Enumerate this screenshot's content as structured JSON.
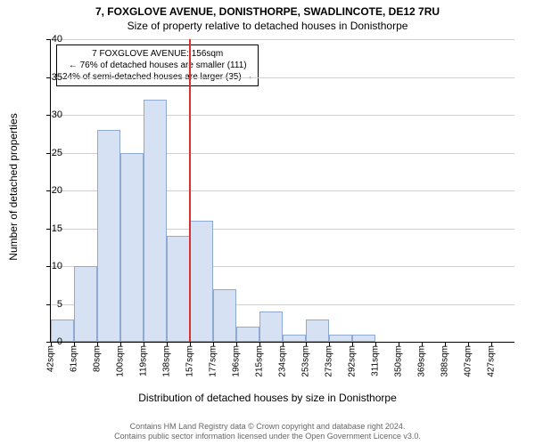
{
  "title": "7, FOXGLOVE AVENUE, DONISTHORPE, SWADLINCOTE, DE12 7RU",
  "subtitle": "Size of property relative to detached houses in Donisthorpe",
  "yaxis_label": "Number of detached properties",
  "xaxis_label": "Distribution of detached houses by size in Donisthorpe",
  "chart": {
    "type": "histogram",
    "ylim": [
      0,
      40
    ],
    "ytick_step": 5,
    "yticks": [
      0,
      5,
      10,
      15,
      20,
      25,
      30,
      35,
      40
    ],
    "xticks": [
      "42sqm",
      "61sqm",
      "80sqm",
      "100sqm",
      "119sqm",
      "138sqm",
      "157sqm",
      "177sqm",
      "196sqm",
      "215sqm",
      "234sqm",
      "253sqm",
      "273sqm",
      "292sqm",
      "311sqm",
      "350sqm",
      "369sqm",
      "388sqm",
      "407sqm",
      "427sqm"
    ],
    "bars": [
      {
        "x": 0,
        "value": 3
      },
      {
        "x": 1,
        "value": 10
      },
      {
        "x": 2,
        "value": 28
      },
      {
        "x": 3,
        "value": 25
      },
      {
        "x": 4,
        "value": 32
      },
      {
        "x": 5,
        "value": 14
      },
      {
        "x": 6,
        "value": 16
      },
      {
        "x": 7,
        "value": 7
      },
      {
        "x": 8,
        "value": 2
      },
      {
        "x": 9,
        "value": 4
      },
      {
        "x": 10,
        "value": 1
      },
      {
        "x": 11,
        "value": 3
      },
      {
        "x": 12,
        "value": 1
      },
      {
        "x": 13,
        "value": 1
      },
      {
        "x": 14,
        "value": 0
      },
      {
        "x": 15,
        "value": 0
      },
      {
        "x": 16,
        "value": 0
      },
      {
        "x": 17,
        "value": 0
      },
      {
        "x": 18,
        "value": 0
      },
      {
        "x": 19,
        "value": 0
      }
    ],
    "bar_color": "#d6e2f3",
    "bar_border_color": "#8faad2",
    "grid_color": "#d0d0d0",
    "background_color": "#ffffff",
    "marker_line_color": "#d93030",
    "marker_bin_index": 5.95
  },
  "annotation": {
    "line1": "7 FOXGLOVE AVENUE: 156sqm",
    "line2": "← 76% of detached houses are smaller (111)",
    "line3": "24% of semi-detached houses are larger (35) →"
  },
  "footer": {
    "line1": "Contains HM Land Registry data © Crown copyright and database right 2024.",
    "line2": "Contains public sector information licensed under the Open Government Licence v3.0."
  }
}
